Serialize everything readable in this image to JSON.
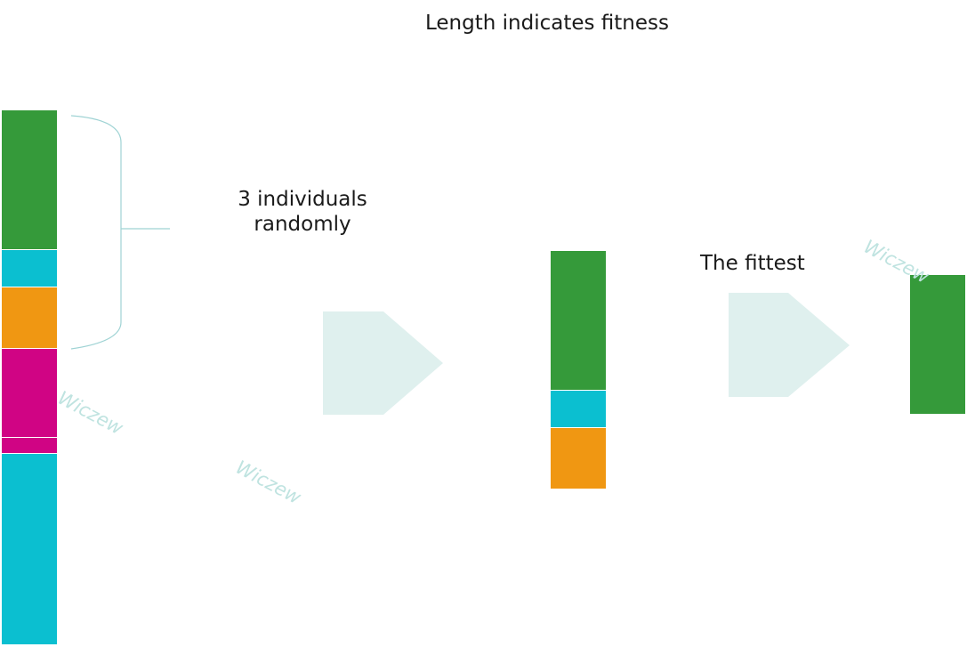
{
  "title": "Length indicates fitness",
  "step_labels": {
    "select": "3 individuals randomly",
    "fittest": "The fittest"
  },
  "colors": {
    "green": "#359a3a",
    "cyan": "#0bbfd0",
    "orange": "#f09712",
    "magenta": "#d00484",
    "arrow": "#dff0ee",
    "brace": "#9fd3d4",
    "watermark": "#bfe3e0"
  },
  "population": [
    {
      "color": "green",
      "fitness": 157
    },
    {
      "color": "cyan",
      "fitness": 42
    },
    {
      "color": "orange",
      "fitness": 69
    },
    {
      "color": "magenta",
      "fitness": 100
    },
    {
      "color": "magenta",
      "fitness": 18
    },
    {
      "color": "cyan",
      "fitness": 215
    }
  ],
  "selected": [
    {
      "color": "green",
      "fitness": 157
    },
    {
      "color": "cyan",
      "fitness": 42
    },
    {
      "color": "orange",
      "fitness": 69
    }
  ],
  "fittest": [
    {
      "color": "green",
      "fitness": 157
    }
  ],
  "watermark": "Wiczew"
}
